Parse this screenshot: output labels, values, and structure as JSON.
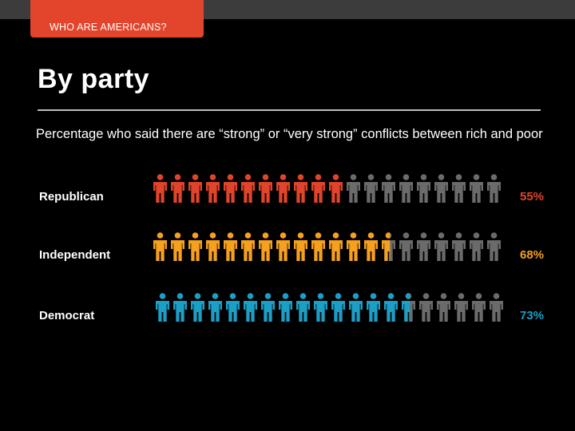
{
  "header": {
    "tag": "WHO ARE AMERICANS?"
  },
  "slide": {
    "title": "By party",
    "subtitle": "Percentage who said there are “strong” or “very strong” conflicts between rich and poor"
  },
  "colors": {
    "background": "#000000",
    "tag": "#e2452c",
    "inactive_figure": "#6b6b6b"
  },
  "chart_data": {
    "type": "bar",
    "unit": "%",
    "categories": [
      "Republican",
      "Independent",
      "Democrat"
    ],
    "values": [
      55,
      68,
      73
    ],
    "value_labels": [
      "55%",
      "68%",
      "73%"
    ],
    "colors": [
      "#e0442a",
      "#f5a01e",
      "#1b9fc6"
    ],
    "figures_per_row": 20,
    "ylim": [
      0,
      100
    ]
  }
}
